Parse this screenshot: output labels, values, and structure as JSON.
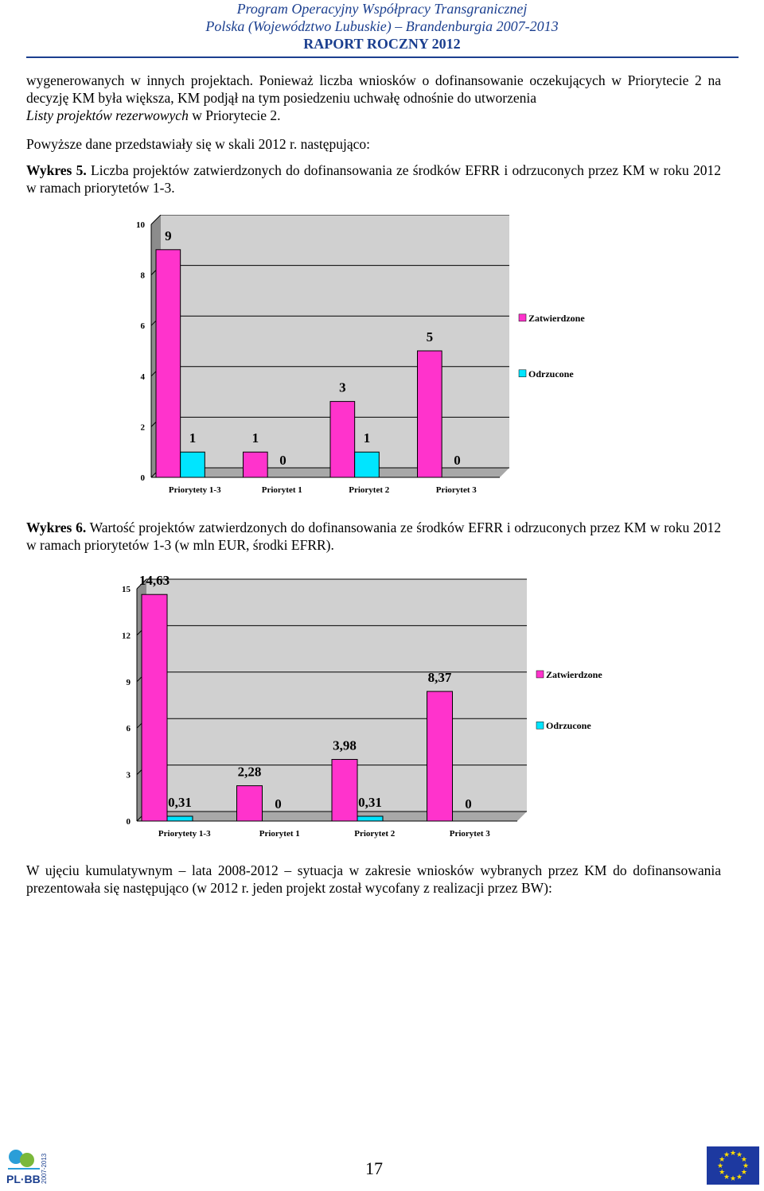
{
  "header": {
    "line1": "Program Operacyjny Współpracy Transgranicznej",
    "line2": "Polska (Województwo Lubuskie) – Brandenburgia 2007-2013",
    "line3": "RAPORT ROCZNY 2012"
  },
  "paragraph1": {
    "text": "wygenerowanych w innych projektach. Ponieważ liczba wniosków o dofinansowanie oczekujących w Priorytecie 2 na decyzję KM była większa, KM podjął na tym posiedzeniu uchwałę odnośnie do utworzenia",
    "tail_italic": "Listy projektów rezerwowych",
    "tail_rest": " w Priorytecie 2."
  },
  "paragraph2": "Powyższe dane przedstawiały się w skali 2012 r. następująco:",
  "caption5": {
    "label": "Wykres 5.",
    "text": " Liczba projektów zatwierdzonych do dofinansowania ze środków EFRR i odrzuconych przez KM w roku 2012 w ramach priorytetów 1-3."
  },
  "caption6": {
    "label": "Wykres 6.",
    "text": " Wartość projektów zatwierdzonych do dofinansowania ze środków EFRR i odrzuconych przez KM w roku 2012 w ramach priorytetów 1-3 (w mln EUR, środki EFRR)."
  },
  "paragraph3": "W ujęciu kumulatywnym – lata 2008-2012 – sytuacja w zakresie wniosków wybranych przez KM do dofinansowania prezentowała się następująco (w 2012 r. jeden projekt został wycofany z realizacji przez BW):",
  "footer": {
    "page_number": "17",
    "logo_text": "PL·BB",
    "logo_years": "2007-2013"
  },
  "colors": {
    "header": "#1b3f8f",
    "approved": "#ff33cc",
    "rejected": "#00e5ff"
  },
  "chart_data": [
    {
      "type": "bar",
      "categories": [
        "Priorytety 1-3",
        "Priorytet 1",
        "Priorytet 2",
        "Priorytet 3"
      ],
      "series": [
        {
          "name": "Zatwierdzone",
          "values": [
            9,
            1,
            3,
            5
          ]
        },
        {
          "name": "Odrzucone",
          "values": [
            1,
            0,
            1,
            0
          ]
        }
      ],
      "data_labels": [
        [
          "9",
          "1",
          "3",
          "5"
        ],
        [
          "1",
          "0",
          "1",
          "0"
        ]
      ],
      "yticks": [
        "0",
        "2",
        "4",
        "6",
        "8",
        "10"
      ],
      "ylim": [
        0,
        10
      ],
      "legend": "right",
      "grid": true
    },
    {
      "type": "bar",
      "categories": [
        "Priorytety 1-3",
        "Priorytet 1",
        "Priorytet 2",
        "Priorytet 3"
      ],
      "series": [
        {
          "name": "Zatwierdzone",
          "values": [
            14.63,
            2.28,
            3.98,
            8.37
          ]
        },
        {
          "name": "Odrzucone",
          "values": [
            0.31,
            0,
            0.31,
            0
          ]
        }
      ],
      "data_labels": [
        [
          "14,63",
          "2,28",
          "3,98",
          "8,37"
        ],
        [
          "0,31",
          "0",
          "0,31",
          "0"
        ]
      ],
      "yticks": [
        "0",
        "3",
        "6",
        "9",
        "12",
        "15"
      ],
      "ylim": [
        0,
        15
      ],
      "legend": "right",
      "grid": true
    }
  ]
}
